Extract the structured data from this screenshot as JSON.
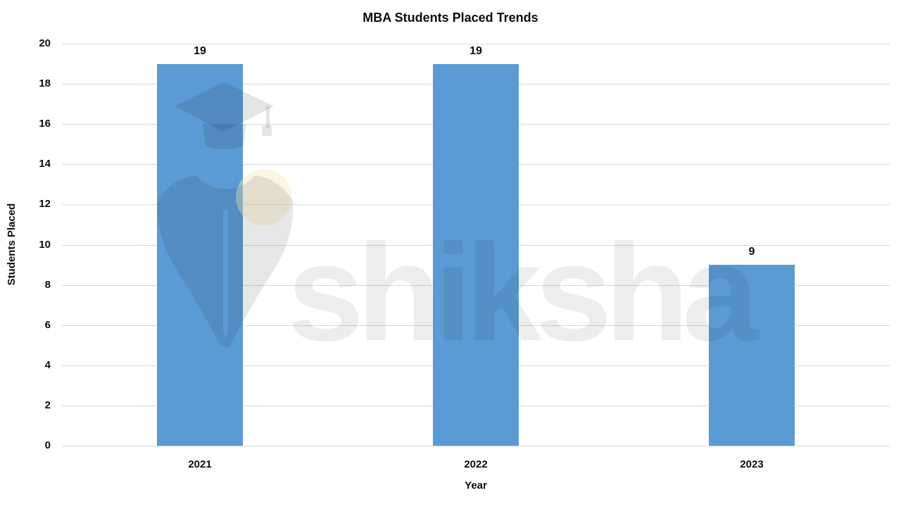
{
  "title": "MBA Students Placed Trends",
  "watermark": {
    "text": "shiksha"
  },
  "chart_data": {
    "type": "bar",
    "title": "MBA Students Placed Trends",
    "xlabel": "Year",
    "ylabel": "Students Placed",
    "categories": [
      "2021",
      "2022",
      "2023"
    ],
    "values": [
      19,
      19,
      9
    ],
    "data_labels": [
      "19",
      "19",
      "9"
    ],
    "ylim": [
      0,
      20
    ],
    "yticks": [
      0,
      2,
      4,
      6,
      8,
      10,
      12,
      14,
      16,
      18,
      20
    ],
    "grid": true,
    "legend": "none",
    "bar_color": "#5B9BD5",
    "gridline_color": "#d9d9d9",
    "label_color": "#0d0d0d",
    "background_color": "#ffffff"
  }
}
